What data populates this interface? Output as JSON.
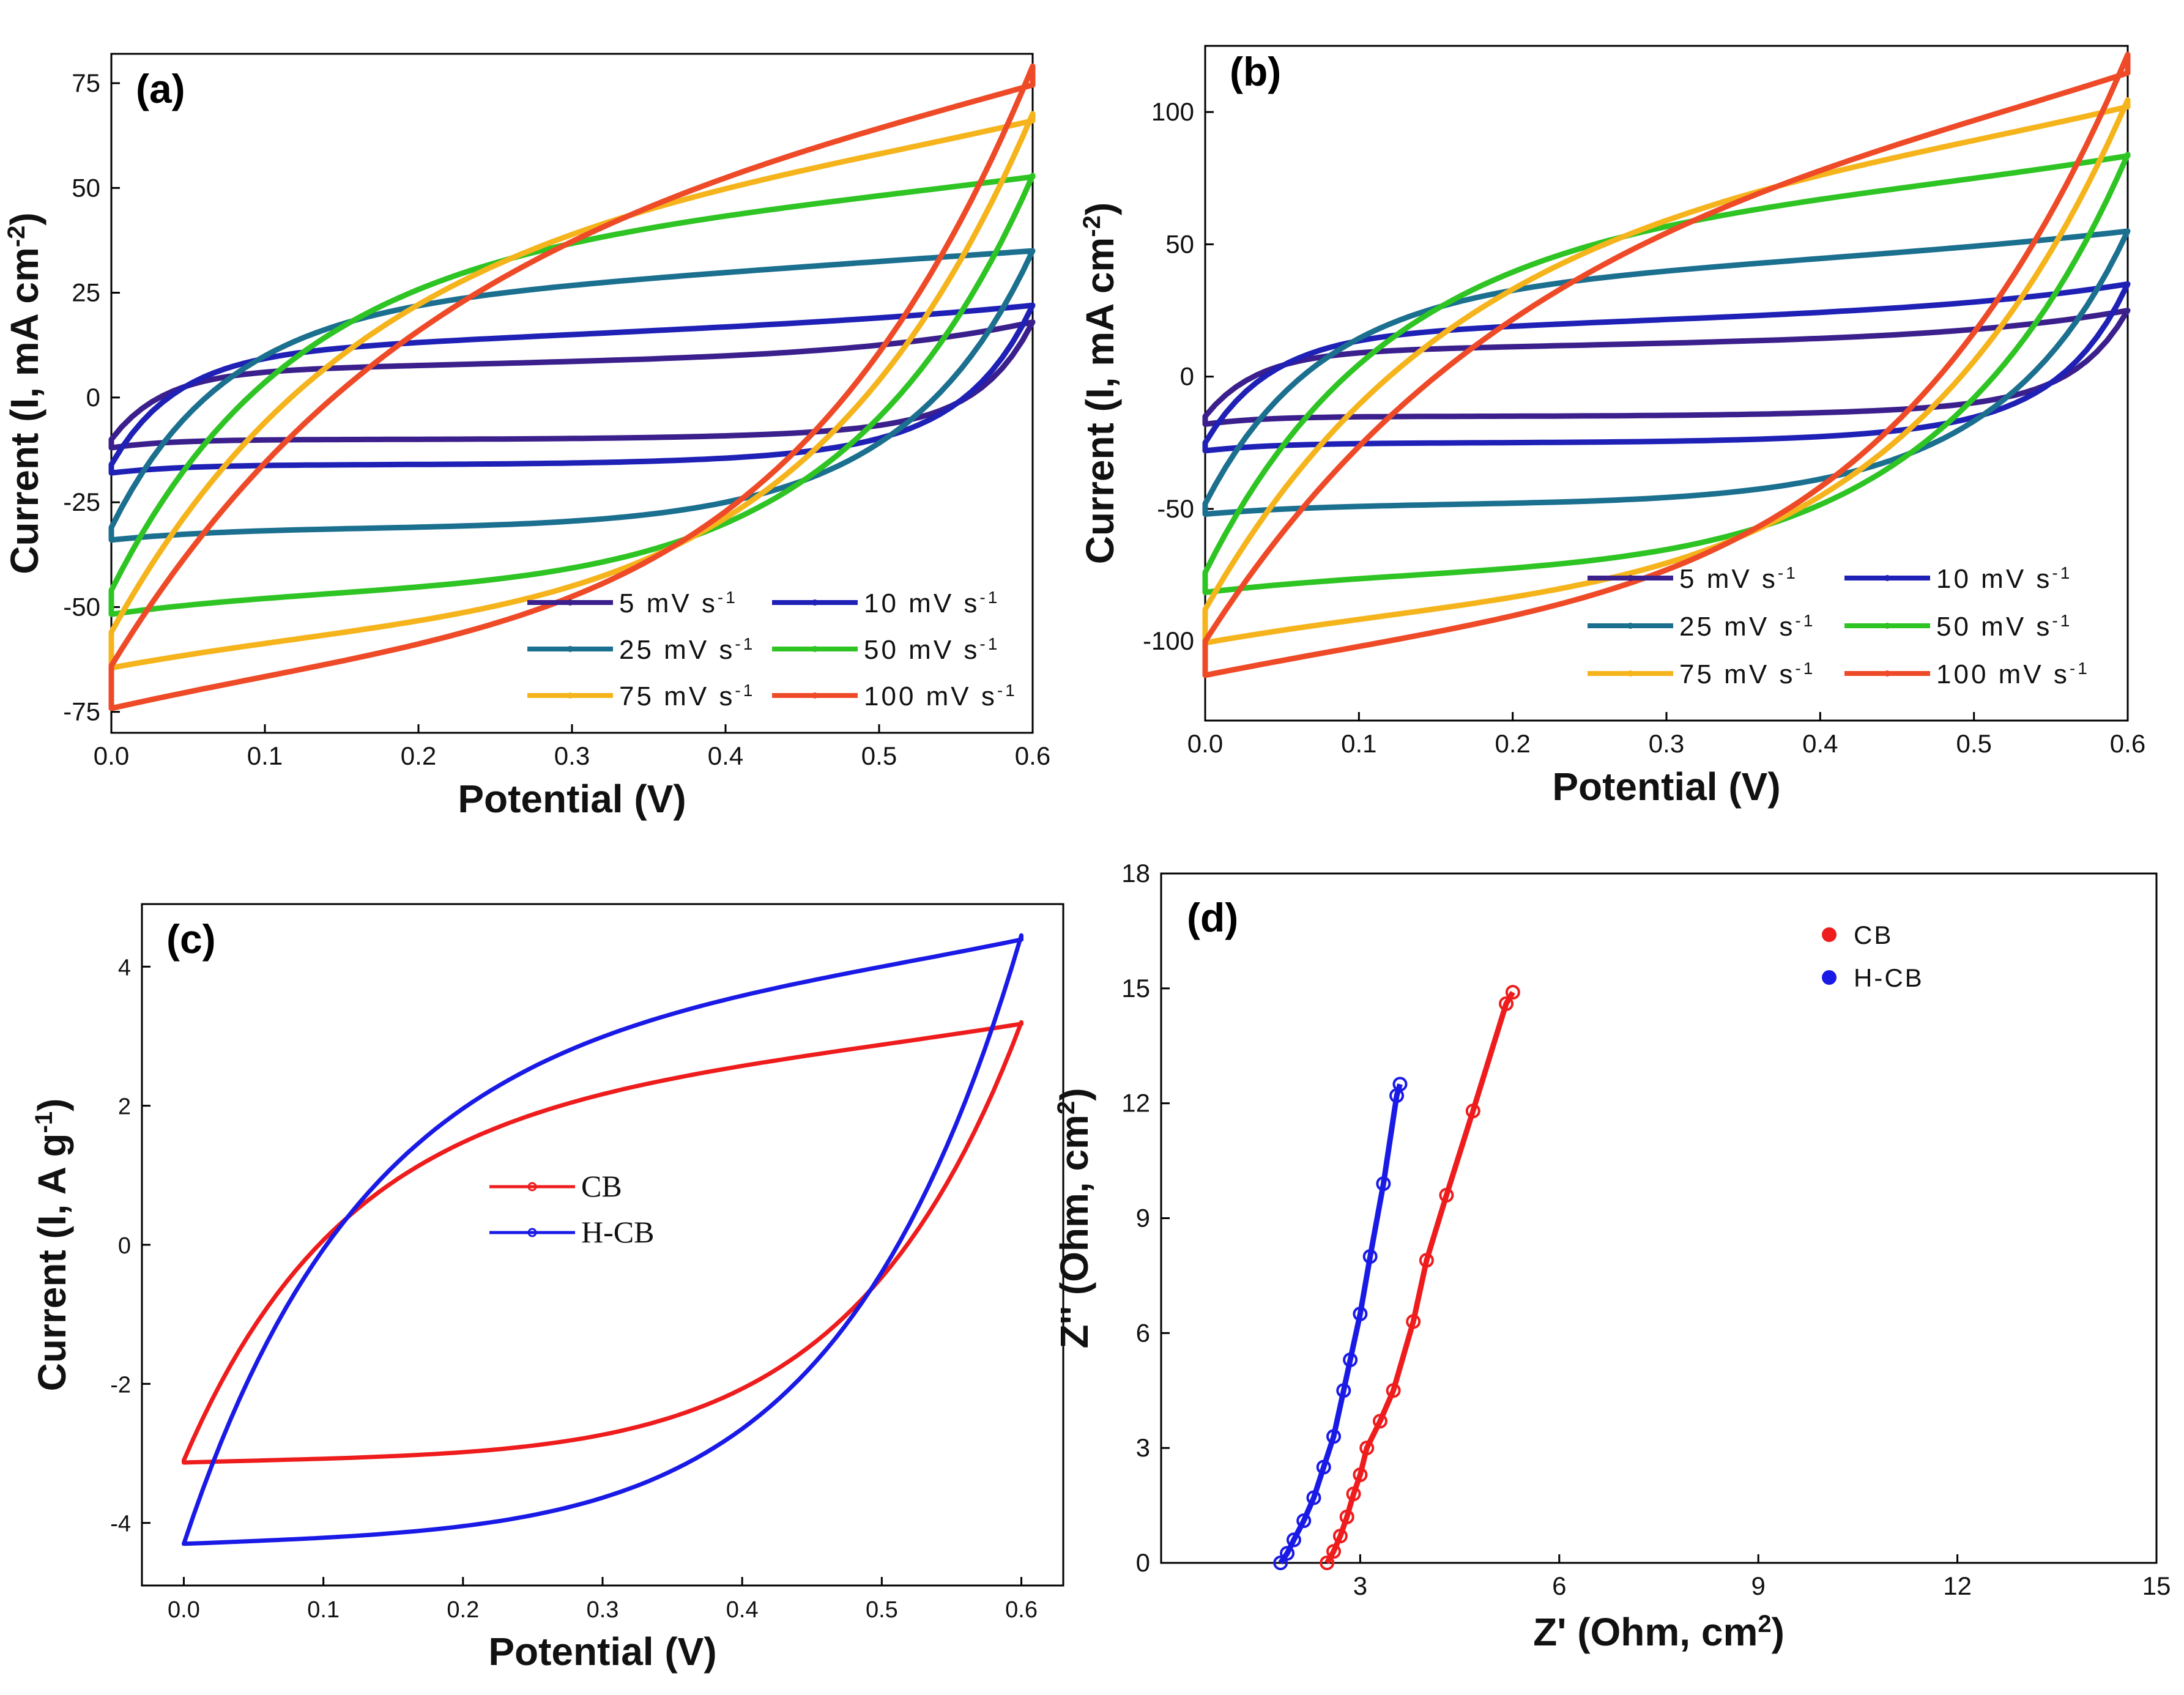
{
  "chart_data": [
    {
      "id": "a",
      "type": "line",
      "panel_label": "(a)",
      "xlabel": "Potential (V)",
      "ylabel": "Current (I, mA cm-2)",
      "ylabel_parts": {
        "main": "Current (I, mA cm",
        "sup": "-2",
        "end": ")"
      },
      "xlim": [
        0,
        0.6
      ],
      "ylim": [
        -80,
        82
      ],
      "xticks": [
        0.0,
        0.1,
        0.2,
        0.3,
        0.4,
        0.5,
        0.6
      ],
      "xtick_labels": [
        "0.0",
        "0.1",
        "0.2",
        "0.3",
        "0.4",
        "0.5",
        "0.6"
      ],
      "yticks": [
        -75,
        -50,
        -25,
        0,
        25,
        50,
        75
      ],
      "ytick_labels": [
        "-75",
        "-50",
        "-25",
        "0",
        "25",
        "50",
        "75"
      ],
      "legend_position": "bottom-right",
      "series": [
        {
          "name": "5 mV s-1",
          "label": "5 mV s",
          "sup": "-1",
          "color": "#3b1f8c",
          "Ap": 6,
          "Bp": 5,
          "Am": -10,
          "Bm": 5,
          "ymax": 18,
          "ymin": -12,
          "k": 30
        },
        {
          "name": "10 mV s-1",
          "label": "10 mV s",
          "sup": "-1",
          "color": "#1f20b5",
          "Ap": 10,
          "Bp": 10,
          "Am": -16,
          "Bm": 8,
          "ymax": 22,
          "ymin": -18,
          "k": 24
        },
        {
          "name": "25 mV s-1",
          "label": "25 mV s",
          "sup": "-1",
          "color": "#1b6f8f",
          "Ap": 20,
          "Bp": 15,
          "Am": -31,
          "Bm": 20,
          "ymax": 35,
          "ymin": -34,
          "k": 14
        },
        {
          "name": "50 mV s-1",
          "label": "50 mV s",
          "sup": "-1",
          "color": "#2ec423",
          "Ap": 32,
          "Bp": 20,
          "Am": -46,
          "Bm": 35,
          "ymax": 53,
          "ymin": -52,
          "k": 9
        },
        {
          "name": "75 mV s-1",
          "label": "75 mV s",
          "sup": "-1",
          "color": "#f5b41c",
          "Ap": 40,
          "Bp": 25,
          "Am": -56,
          "Bm": 50,
          "ymax": 68,
          "ymin": -66,
          "k": 6.5
        },
        {
          "name": "100 mV s-1",
          "label": "100 mV s",
          "sup": "-1",
          "color": "#ee4a28",
          "Ap": 45,
          "Bp": 33,
          "Am": -64,
          "Bm": 67,
          "ymax": 80,
          "ymin": -78,
          "k": 5
        }
      ]
    },
    {
      "id": "b",
      "type": "line",
      "panel_label": "(b)",
      "xlabel": "Potential (V)",
      "ylabel": "Current (I, mA cm-2)",
      "ylabel_parts": {
        "main": "Current (I, mA cm",
        "sup": "-2",
        "end": ")"
      },
      "xlim": [
        0,
        0.6
      ],
      "ylim": [
        -130,
        125
      ],
      "xticks": [
        0.0,
        0.1,
        0.2,
        0.3,
        0.4,
        0.5,
        0.6
      ],
      "xtick_labels": [
        "0.0",
        "0.1",
        "0.2",
        "0.3",
        "0.4",
        "0.5",
        "0.6"
      ],
      "yticks": [
        -100,
        -50,
        0,
        50,
        100
      ],
      "ytick_labels": [
        "-100",
        "-50",
        "0",
        "50",
        "100"
      ],
      "legend_position": "bottom-right",
      "series": [
        {
          "name": "5 mV s-1",
          "label": "5 mV s",
          "sup": "-1",
          "color": "#3b1f8c",
          "Ap": 9,
          "Bp": 7,
          "Am": -15,
          "Bm": 8,
          "ymax": 25,
          "ymin": -18,
          "k": 30
        },
        {
          "name": "10 mV s-1",
          "label": "10 mV s",
          "sup": "-1",
          "color": "#1f20b5",
          "Ap": 15,
          "Bp": 13,
          "Am": -25,
          "Bm": 12,
          "ymax": 35,
          "ymin": -28,
          "k": 24
        },
        {
          "name": "25 mV s-1",
          "label": "25 mV s",
          "sup": "-1",
          "color": "#1b6f8f",
          "Ap": 30,
          "Bp": 22,
          "Am": -48,
          "Bm": 30,
          "ymax": 55,
          "ymin": -52,
          "k": 14
        },
        {
          "name": "50 mV s-1",
          "label": "50 mV s",
          "sup": "-1",
          "color": "#2ec423",
          "Ap": 50,
          "Bp": 30,
          "Am": -74,
          "Bm": 55,
          "ymax": 84,
          "ymin": -82,
          "k": 9
        },
        {
          "name": "75 mV s-1",
          "label": "75 mV s",
          "sup": "-1",
          "color": "#f5b41c",
          "Ap": 60,
          "Bp": 40,
          "Am": -88,
          "Bm": 75,
          "ymax": 105,
          "ymin": -103,
          "k": 6.5
        },
        {
          "name": "100 mV s-1",
          "label": "100 mV s",
          "sup": "-1",
          "color": "#ee4a28",
          "Ap": 65,
          "Bp": 52,
          "Am": -100,
          "Bm": 100,
          "ymax": 123,
          "ymin": -119,
          "k": 5
        }
      ]
    },
    {
      "id": "c",
      "type": "line",
      "panel_label": "(c)",
      "xlabel": "Potential (V)",
      "ylabel": "Current (I, A g-1)",
      "ylabel_parts": {
        "main": "Current (I, A g",
        "sup": "-1",
        "end": ")"
      },
      "xlim": [
        -0.03,
        0.63
      ],
      "ylim": [
        -4.9,
        4.9
      ],
      "xticks": [
        0.0,
        0.1,
        0.2,
        0.3,
        0.4,
        0.5,
        0.6
      ],
      "xtick_labels": [
        "0.0",
        "0.1",
        "0.2",
        "0.3",
        "0.4",
        "0.5",
        "0.6"
      ],
      "yticks": [
        -4,
        -2,
        0,
        2,
        4
      ],
      "ytick_labels": [
        "-4",
        "-2",
        "0",
        "2",
        "4"
      ],
      "legend_position": "center",
      "series": [
        {
          "name": "CB",
          "label": "CB",
          "color": "#ee1c1c",
          "Ap": 1.9,
          "Bp": 1.2,
          "Am": -3.1,
          "Bm": 2.2,
          "ymax": 3.2,
          "ymin": -3.15,
          "k": 9
        },
        {
          "name": "H-CB",
          "label": "H-CB",
          "color": "#1a1ae6",
          "Ap": 3.0,
          "Bp": 1.3,
          "Am": -4.3,
          "Bm": 2.7,
          "ymax": 4.45,
          "ymin": -4.35,
          "k": 8
        }
      ]
    },
    {
      "id": "d",
      "type": "scatter",
      "panel_label": "(d)",
      "xlabel": "Z' (Ohm, cm2)",
      "xlabel_parts": {
        "main": "Z' (Ohm, cm",
        "sup": "2",
        "end": ")"
      },
      "ylabel": "Z'' (Ohm, cm2)",
      "ylabel_parts": {
        "main": "Z'' (Ohm, cm",
        "sup": "2",
        "end": ")"
      },
      "xlim": [
        0,
        15
      ],
      "ylim": [
        0,
        18
      ],
      "xticks": [
        3,
        6,
        9,
        12,
        15
      ],
      "xtick_labels": [
        "3",
        "6",
        "9",
        "12",
        "15"
      ],
      "yticks": [
        0,
        3,
        6,
        9,
        12,
        15,
        18
      ],
      "ytick_labels": [
        "0",
        "3",
        "6",
        "9",
        "12",
        "15",
        "18"
      ],
      "legend_position": "top-right",
      "series": [
        {
          "name": "CB",
          "label": "CB",
          "color": "#ee1c1c",
          "x": [
            2.5,
            2.6,
            2.7,
            2.8,
            2.9,
            3.0,
            3.1,
            3.3,
            3.5,
            3.8,
            4.0,
            4.3,
            4.7,
            5.2,
            5.3
          ],
          "y": [
            0.0,
            0.3,
            0.7,
            1.2,
            1.8,
            2.3,
            3.0,
            3.7,
            4.5,
            6.3,
            7.9,
            9.6,
            11.8,
            14.6,
            14.9
          ]
        },
        {
          "name": "H-CB",
          "label": "H-CB",
          "color": "#1a1ae6",
          "x": [
            1.8,
            1.9,
            2.0,
            2.15,
            2.3,
            2.45,
            2.6,
            2.75,
            2.85,
            3.0,
            3.15,
            3.35,
            3.55,
            3.6
          ],
          "y": [
            0.0,
            0.25,
            0.6,
            1.1,
            1.7,
            2.5,
            3.3,
            4.5,
            5.3,
            6.5,
            8.0,
            9.9,
            12.2,
            12.5
          ]
        }
      ]
    }
  ]
}
